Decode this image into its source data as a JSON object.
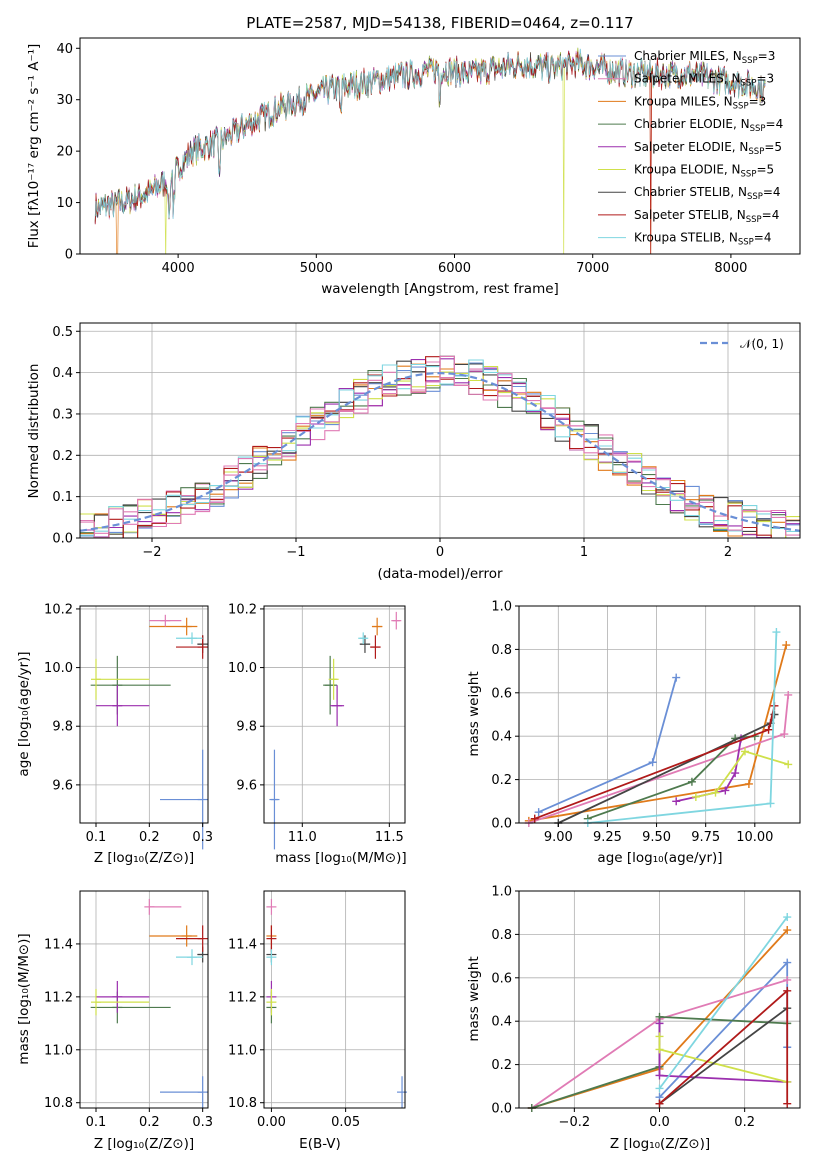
{
  "colors": {
    "Chabrier MILES": "#6a8fd6",
    "Salpeter MILES": "#e07a1a",
    "Kroupa MILES": "#e07a1a",
    "Chabrier ELODIE": "#4e7a4e",
    "Salpeter ELODIE": "#9b2fae",
    "Kroupa ELODIE": "#cfe04a",
    "Chabrier STELIB": "#444444",
    "Salpeter STELIB": "#b01a1a",
    "Kroupa STELIB": "#7fd6e0",
    "Pink": "#e07bb5",
    "Normal": "#6a8fd6"
  },
  "chart_data": [
    {
      "id": "spectrum",
      "type": "line",
      "title": "PLATE=2587, MJD=54138, FIBERID=0464, z=0.117",
      "xlabel": "wavelength [Angstrom, rest frame]",
      "ylabel": "Flux [fλ10⁻¹⁷ erg cm⁻² s⁻¹ A⁻¹]",
      "xlim": [
        3290,
        8500
      ],
      "ylim": [
        0,
        42
      ],
      "xticks": [
        "4000",
        "5000",
        "6000",
        "7000",
        "8000"
      ],
      "yticks": [
        "0",
        "10",
        "20",
        "30",
        "40"
      ],
      "legend_placement": "upper right",
      "legend": [
        {
          "label": "Chabrier MILES, N",
          "sub": "SSP",
          "tail": "=3",
          "color_key": "Chabrier MILES"
        },
        {
          "label": "Salpeter MILES, N",
          "sub": "SSP",
          "tail": "=3",
          "color_key": "Pink"
        },
        {
          "label": "Kroupa MILES, N",
          "sub": "SSP",
          "tail": "=3",
          "color_key": "Kroupa MILES"
        },
        {
          "label": "Chabrier ELODIE, N",
          "sub": "SSP",
          "tail": "=4",
          "color_key": "Chabrier ELODIE"
        },
        {
          "label": "Salpeter ELODIE, N",
          "sub": "SSP",
          "tail": "=5",
          "color_key": "Salpeter ELODIE"
        },
        {
          "label": "Kroupa ELODIE, N",
          "sub": "SSP",
          "tail": "=5",
          "color_key": "Kroupa ELODIE"
        },
        {
          "label": "Chabrier STELIB, N",
          "sub": "SSP",
          "tail": "=4",
          "color_key": "Chabrier STELIB"
        },
        {
          "label": "Salpeter STELIB, N",
          "sub": "SSP",
          "tail": "=4",
          "color_key": "Salpeter STELIB"
        },
        {
          "label": "Kroupa STELIB, N",
          "sub": "SSP",
          "tail": "=4",
          "color_key": "Kroupa STELIB"
        }
      ],
      "continuum": [
        [
          3400,
          9
        ],
        [
          3600,
          10
        ],
        [
          3800,
          12
        ],
        [
          3950,
          15
        ],
        [
          4100,
          20
        ],
        [
          4300,
          22
        ],
        [
          4500,
          25
        ],
        [
          4700,
          28
        ],
        [
          4900,
          30
        ],
        [
          5100,
          32
        ],
        [
          5300,
          33
        ],
        [
          5500,
          34
        ],
        [
          5700,
          35
        ],
        [
          5900,
          36
        ],
        [
          6100,
          35
        ],
        [
          6300,
          36
        ],
        [
          6500,
          37
        ],
        [
          6700,
          36
        ],
        [
          6900,
          37
        ],
        [
          7100,
          36
        ],
        [
          7300,
          35
        ],
        [
          7500,
          35
        ],
        [
          7700,
          35
        ],
        [
          7900,
          34
        ],
        [
          8100,
          33
        ],
        [
          8250,
          32
        ]
      ]
    },
    {
      "id": "residuals",
      "type": "bar",
      "xlabel": "(data-model)/error",
      "ylabel": "Normed distribution",
      "xlim": [
        -2.5,
        2.5
      ],
      "ylim": [
        0,
        0.52
      ],
      "xticks": [
        "−2",
        "−1",
        "0",
        "1",
        "2"
      ],
      "yticks": [
        "0.0",
        "0.1",
        "0.2",
        "0.3",
        "0.4",
        "0.5"
      ],
      "grid": true,
      "legend": "𝒩(0, 1)",
      "legend_placement": "upper right",
      "bin_width": 0.1,
      "series_count": 10
    },
    {
      "id": "age-vs-Z",
      "type": "scatter",
      "xlabel": "Z [log₁₀(Z/Z⊙)]",
      "ylabel": "age  [log₁₀(age/yr)]",
      "xlim": [
        0.07,
        0.31
      ],
      "ylim": [
        9.47,
        10.21
      ],
      "xticks": [
        "0.1",
        "0.2",
        "0.3"
      ],
      "yticks": [
        "9.6",
        "9.8",
        "10.0",
        "10.2"
      ],
      "grid": true,
      "points": [
        {
          "x": 0.3,
          "y": 9.55,
          "xerr": [
            0.08,
            0.0
          ],
          "yerr": 0.17,
          "color_key": "Chabrier MILES"
        },
        {
          "x": 0.27,
          "y": 10.14,
          "xerr": [
            0.07,
            0.02
          ],
          "yerr": 0.03,
          "color_key": "Kroupa MILES"
        },
        {
          "x": 0.23,
          "y": 10.16,
          "xerr": [
            0.03,
            0.03
          ],
          "yerr": 0.02,
          "color_key": "Pink"
        },
        {
          "x": 0.14,
          "y": 9.94,
          "xerr": [
            0.05,
            0.1
          ],
          "yerr": 0.1,
          "color_key": "Chabrier ELODIE"
        },
        {
          "x": 0.14,
          "y": 9.87,
          "xerr": [
            0.04,
            0.06
          ],
          "yerr": 0.07,
          "color_key": "Salpeter ELODIE"
        },
        {
          "x": 0.1,
          "y": 9.96,
          "xerr": [
            0.0,
            0.1
          ],
          "yerr": 0.07,
          "color_key": "Kroupa ELODIE"
        },
        {
          "x": 0.3,
          "y": 10.08,
          "xerr": [
            0.01,
            0.0
          ],
          "yerr": 0.03,
          "color_key": "Chabrier STELIB"
        },
        {
          "x": 0.3,
          "y": 10.07,
          "xerr": [
            0.05,
            0.0
          ],
          "yerr": 0.04,
          "color_key": "Salpeter STELIB"
        },
        {
          "x": 0.28,
          "y": 10.1,
          "xerr": [
            0.03,
            0.02
          ],
          "yerr": 0.02,
          "color_key": "Kroupa STELIB"
        }
      ]
    },
    {
      "id": "age-vs-mass",
      "type": "scatter",
      "xlabel": "mass [log₁₀(M/M⊙)]",
      "ylabel": "",
      "xlim": [
        10.78,
        11.59
      ],
      "ylim": [
        9.47,
        10.21
      ],
      "xticks": [
        "11.0",
        "11.5"
      ],
      "yticks": [
        "9.6",
        "9.8",
        "10.0",
        "10.2"
      ],
      "grid": true,
      "points": [
        {
          "x": 10.84,
          "y": 9.55,
          "xerr": 0.02,
          "yerr": 0.17,
          "color_key": "Chabrier MILES"
        },
        {
          "x": 11.43,
          "y": 10.14,
          "xerr": 0.03,
          "yerr": 0.03,
          "color_key": "Kroupa MILES"
        },
        {
          "x": 11.54,
          "y": 10.16,
          "xerr": 0.02,
          "yerr": 0.03,
          "color_key": "Pink"
        },
        {
          "x": 11.16,
          "y": 9.94,
          "xerr": 0.04,
          "yerr": 0.1,
          "color_key": "Chabrier ELODIE"
        },
        {
          "x": 11.2,
          "y": 9.87,
          "xerr": 0.04,
          "yerr": 0.07,
          "color_key": "Salpeter ELODIE"
        },
        {
          "x": 11.18,
          "y": 9.96,
          "xerr": 0.02,
          "yerr": 0.07,
          "color_key": "Kroupa ELODIE"
        },
        {
          "x": 11.36,
          "y": 10.08,
          "xerr": 0.03,
          "yerr": 0.03,
          "color_key": "Chabrier STELIB"
        },
        {
          "x": 11.42,
          "y": 10.07,
          "xerr": 0.03,
          "yerr": 0.04,
          "color_key": "Salpeter STELIB"
        },
        {
          "x": 11.35,
          "y": 10.1,
          "xerr": 0.02,
          "yerr": 0.02,
          "color_key": "Kroupa STELIB"
        }
      ]
    },
    {
      "id": "weight-vs-age",
      "type": "line",
      "xlabel": "age  [log₁₀(age/yr)]",
      "ylabel": "mass weight",
      "xlim": [
        8.8,
        10.23
      ],
      "ylim": [
        0,
        1.0
      ],
      "xticks": [
        "9.00",
        "9.25",
        "9.50",
        "9.75",
        "10.00"
      ],
      "yticks": [
        "0.0",
        "0.2",
        "0.4",
        "0.6",
        "0.8",
        "1.0"
      ],
      "grid": true,
      "series": [
        {
          "color_key": "Chabrier MILES",
          "x": [
            8.9,
            9.48,
            9.6
          ],
          "y": [
            0.05,
            0.28,
            0.67
          ]
        },
        {
          "color_key": "Kroupa MILES",
          "x": [
            8.85,
            9.97,
            10.16
          ],
          "y": [
            0.01,
            0.18,
            0.82
          ]
        },
        {
          "color_key": "Pink",
          "x": [
            8.85,
            10.15,
            10.17
          ],
          "y": [
            0.0,
            0.41,
            0.59
          ]
        },
        {
          "color_key": "Chabrier ELODIE",
          "x": [
            9.15,
            9.68,
            9.9,
            10.0
          ],
          "y": [
            0.02,
            0.19,
            0.39,
            0.4
          ]
        },
        {
          "color_key": "Salpeter ELODIE",
          "x": [
            9.6,
            9.85,
            9.9,
            9.93
          ],
          "y": [
            0.1,
            0.15,
            0.23,
            0.39
          ]
        },
        {
          "color_key": "Kroupa ELODIE",
          "x": [
            9.7,
            9.8,
            9.95,
            10.17
          ],
          "y": [
            0.12,
            0.14,
            0.33,
            0.27
          ]
        },
        {
          "color_key": "Chabrier STELIB",
          "x": [
            9.0,
            10.08,
            10.1
          ],
          "y": [
            0.0,
            0.46,
            0.5
          ]
        },
        {
          "color_key": "Salpeter STELIB",
          "x": [
            8.88,
            10.07,
            10.1
          ],
          "y": [
            0.02,
            0.43,
            0.54
          ]
        },
        {
          "color_key": "Kroupa STELIB",
          "x": [
            9.15,
            10.08,
            10.11
          ],
          "y": [
            0.0,
            0.09,
            0.88
          ]
        }
      ]
    },
    {
      "id": "mass-vs-Z",
      "type": "scatter",
      "xlabel": "Z [log₁₀(Z/Z⊙)]",
      "ylabel": "mass [log₁₀(M/M⊙)]",
      "xlim": [
        0.07,
        0.31
      ],
      "ylim": [
        10.78,
        11.6
      ],
      "xticks": [
        "0.1",
        "0.2",
        "0.3"
      ],
      "yticks": [
        "10.8",
        "11.0",
        "11.2",
        "11.4"
      ],
      "grid": true,
      "points": [
        {
          "x": 0.3,
          "y": 10.84,
          "xerr": [
            0.08,
            0.0
          ],
          "yerr": 0.06,
          "color_key": "Chabrier MILES"
        },
        {
          "x": 0.27,
          "y": 11.43,
          "xerr": [
            0.07,
            0.02
          ],
          "yerr": 0.04,
          "color_key": "Kroupa MILES"
        },
        {
          "x": 0.2,
          "y": 11.54,
          "xerr": [
            0.0,
            0.06
          ],
          "yerr": 0.03,
          "color_key": "Pink"
        },
        {
          "x": 0.14,
          "y": 11.16,
          "xerr": [
            0.05,
            0.1
          ],
          "yerr": 0.06,
          "color_key": "Chabrier ELODIE"
        },
        {
          "x": 0.14,
          "y": 11.2,
          "xerr": [
            0.04,
            0.06
          ],
          "yerr": 0.06,
          "color_key": "Salpeter ELODIE"
        },
        {
          "x": 0.1,
          "y": 11.18,
          "xerr": [
            0.0,
            0.1
          ],
          "yerr": 0.05,
          "color_key": "Kroupa ELODIE"
        },
        {
          "x": 0.3,
          "y": 11.36,
          "xerr": [
            0.01,
            0.0
          ],
          "yerr": 0.03,
          "color_key": "Chabrier STELIB"
        },
        {
          "x": 0.3,
          "y": 11.42,
          "xerr": [
            0.05,
            0.0
          ],
          "yerr": 0.05,
          "color_key": "Salpeter STELIB"
        },
        {
          "x": 0.28,
          "y": 11.35,
          "xerr": [
            0.03,
            0.02
          ],
          "yerr": 0.03,
          "color_key": "Kroupa STELIB"
        }
      ]
    },
    {
      "id": "mass-vs-ebv",
      "type": "scatter",
      "xlabel": "E(B-V)",
      "ylabel": "",
      "xlim": [
        -0.005,
        0.09
      ],
      "ylim": [
        10.78,
        11.6
      ],
      "xticks": [
        "0.00",
        "0.05"
      ],
      "yticks": [
        "10.8",
        "11.0",
        "11.2",
        "11.4"
      ],
      "grid": true,
      "points": [
        {
          "x": 0.088,
          "y": 10.84,
          "yerr": 0.06,
          "color_key": "Chabrier MILES"
        },
        {
          "x": 0.0,
          "y": 11.43,
          "yerr": 0.04,
          "color_key": "Kroupa MILES"
        },
        {
          "x": 0.0,
          "y": 11.54,
          "yerr": 0.03,
          "color_key": "Pink"
        },
        {
          "x": 0.0,
          "y": 11.16,
          "yerr": 0.06,
          "color_key": "Chabrier ELODIE"
        },
        {
          "x": 0.0,
          "y": 11.2,
          "yerr": 0.06,
          "color_key": "Salpeter ELODIE"
        },
        {
          "x": 0.0,
          "y": 11.18,
          "yerr": 0.05,
          "color_key": "Kroupa ELODIE"
        },
        {
          "x": 0.0,
          "y": 11.36,
          "yerr": 0.03,
          "color_key": "Chabrier STELIB"
        },
        {
          "x": 0.0,
          "y": 11.42,
          "yerr": 0.05,
          "color_key": "Salpeter STELIB"
        },
        {
          "x": 0.0,
          "y": 11.35,
          "yerr": 0.03,
          "color_key": "Kroupa STELIB"
        }
      ]
    },
    {
      "id": "weight-vs-Z",
      "type": "line",
      "xlabel": "Z [log₁₀(Z/Z⊙)]",
      "ylabel": "mass weight",
      "xlim": [
        -0.33,
        0.33
      ],
      "ylim": [
        0,
        1.0
      ],
      "xticks": [
        "−0.2",
        "0.0",
        "0.2"
      ],
      "yticks": [
        "0.0",
        "0.2",
        "0.4",
        "0.6",
        "0.8",
        "1.0"
      ],
      "grid": true,
      "series": [
        {
          "color_key": "Chabrier MILES",
          "x": [
            0.0,
            0.3,
            0.3
          ],
          "y": [
            0.05,
            0.67,
            0.28
          ]
        },
        {
          "color_key": "Kroupa MILES",
          "x": [
            -0.3,
            0.0,
            0.3
          ],
          "y": [
            0.0,
            0.18,
            0.82
          ]
        },
        {
          "color_key": "Pink",
          "x": [
            -0.3,
            0.0,
            0.3
          ],
          "y": [
            0.0,
            0.41,
            0.59
          ]
        },
        {
          "color_key": "Chabrier ELODIE",
          "x": [
            -0.3,
            0.0,
            0.0,
            0.3
          ],
          "y": [
            0.0,
            0.19,
            0.42,
            0.39
          ]
        },
        {
          "color_key": "Salpeter ELODIE",
          "x": [
            0.0,
            0.0,
            0.3
          ],
          "y": [
            0.39,
            0.15,
            0.12
          ]
        },
        {
          "color_key": "Kroupa ELODIE",
          "x": [
            0.0,
            0.0,
            0.3
          ],
          "y": [
            0.33,
            0.27,
            0.12
          ]
        },
        {
          "color_key": "Chabrier STELIB",
          "x": [
            0.0,
            0.3
          ],
          "y": [
            0.02,
            0.46
          ]
        },
        {
          "color_key": "Salpeter STELIB",
          "x": [
            0.0,
            0.3,
            0.3
          ],
          "y": [
            0.02,
            0.54,
            0.02
          ]
        },
        {
          "color_key": "Kroupa STELIB",
          "x": [
            0.0,
            0.3
          ],
          "y": [
            0.09,
            0.88
          ]
        }
      ]
    }
  ]
}
